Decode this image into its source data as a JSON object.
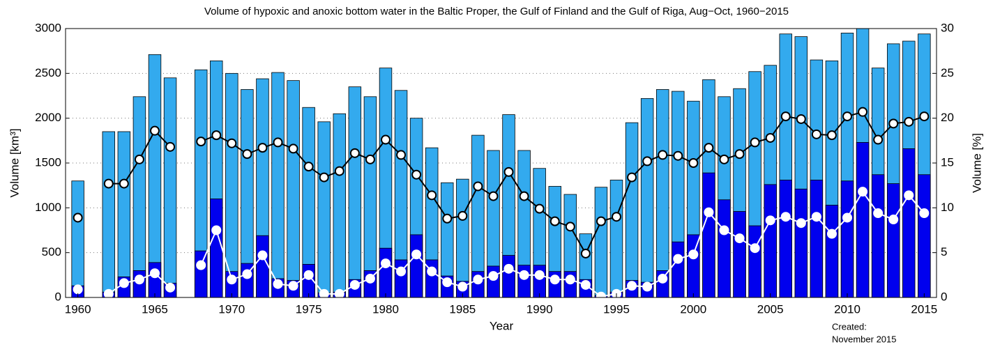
{
  "chart_data": {
    "type": "bar",
    "title": "Volume of hypoxic and anoxic bottom water in the Baltic Proper, the Gulf of Finland and the Gulf of Riga, Aug−Oct, 1960−2015",
    "xlabel": "Year",
    "ylabel": "Volume [km³]",
    "y2label": "Volume [%]",
    "annotation": [
      "Created:",
      "November 2015"
    ],
    "x": [
      1960,
      1961,
      1962,
      1963,
      1964,
      1965,
      1966,
      1967,
      1968,
      1969,
      1970,
      1971,
      1972,
      1973,
      1974,
      1975,
      1976,
      1977,
      1978,
      1979,
      1980,
      1981,
      1982,
      1983,
      1984,
      1985,
      1986,
      1987,
      1988,
      1989,
      1990,
      1991,
      1992,
      1993,
      1994,
      1995,
      1996,
      1997,
      1998,
      1999,
      2000,
      2001,
      2002,
      2003,
      2004,
      2005,
      2006,
      2007,
      2008,
      2009,
      2010,
      2011,
      2012,
      2013,
      2014,
      2015
    ],
    "xlim": [
      1959.2,
      2015.8
    ],
    "xticks": [
      1960,
      1965,
      1970,
      1975,
      1980,
      1985,
      1990,
      1995,
      2000,
      2005,
      2010,
      2015
    ],
    "ylim": [
      0,
      3000
    ],
    "yticks": [
      0,
      500,
      1000,
      1500,
      2000,
      2500,
      3000
    ],
    "y2lim": [
      0,
      30
    ],
    "y2ticks": [
      0,
      5,
      10,
      15,
      20,
      25,
      30
    ],
    "grid": true,
    "series": [
      {
        "kind": "bar",
        "color": "#33aaee",
        "values": [
          1300,
          null,
          1850,
          1850,
          2240,
          2710,
          2450,
          null,
          2540,
          2640,
          2500,
          2320,
          2440,
          2510,
          2420,
          2120,
          1960,
          2050,
          2350,
          2240,
          2560,
          2310,
          2000,
          1670,
          1280,
          1320,
          1810,
          1640,
          2040,
          1640,
          1440,
          1240,
          1150,
          710,
          1230,
          1310,
          1950,
          2220,
          2320,
          2300,
          2190,
          2430,
          2240,
          2330,
          2520,
          2590,
          2940,
          2910,
          2650,
          2640,
          2950,
          3000,
          2560,
          2830,
          2860,
          2940
        ]
      },
      {
        "kind": "bar",
        "color": "#0000ee",
        "values": [
          130,
          null,
          60,
          230,
          300,
          390,
          160,
          null,
          520,
          1100,
          290,
          380,
          690,
          210,
          190,
          370,
          50,
          60,
          200,
          300,
          550,
          420,
          700,
          420,
          240,
          180,
          290,
          350,
          470,
          360,
          360,
          290,
          290,
          200,
          20,
          60,
          190,
          170,
          300,
          620,
          700,
          1390,
          1090,
          960,
          800,
          1260,
          1310,
          1210,
          1310,
          1030,
          1300,
          1730,
          1370,
          1270,
          1660,
          1370
        ]
      },
      {
        "kind": "line",
        "axis": "y2",
        "color": "#000000",
        "marker_fill": "#ffffff",
        "values": [
          8.9,
          null,
          12.7,
          12.7,
          15.4,
          18.6,
          16.8,
          null,
          17.4,
          18.1,
          17.2,
          16.0,
          16.7,
          17.3,
          16.6,
          14.6,
          13.4,
          14.1,
          16.1,
          15.4,
          17.6,
          15.9,
          13.7,
          11.4,
          8.8,
          9.1,
          12.4,
          11.3,
          14.0,
          11.3,
          9.9,
          8.5,
          7.9,
          4.9,
          8.5,
          9.0,
          13.4,
          15.2,
          15.9,
          15.8,
          15.0,
          16.7,
          15.4,
          16.0,
          17.3,
          17.8,
          20.2,
          19.9,
          18.2,
          18.1,
          20.2,
          20.7,
          17.6,
          19.4,
          19.6,
          20.2
        ]
      },
      {
        "kind": "line",
        "axis": "y2",
        "color": "#ffffff",
        "marker_fill": "#ffffff",
        "values": [
          0.9,
          null,
          0.4,
          1.6,
          2.0,
          2.7,
          1.1,
          null,
          3.6,
          7.5,
          2.0,
          2.6,
          4.7,
          1.5,
          1.3,
          2.5,
          0.4,
          0.4,
          1.4,
          2.1,
          3.8,
          2.9,
          4.8,
          2.9,
          1.7,
          1.2,
          2.0,
          2.4,
          3.2,
          2.5,
          2.5,
          2.0,
          2.0,
          1.4,
          0.1,
          0.4,
          1.3,
          1.2,
          2.1,
          4.3,
          4.8,
          9.5,
          7.5,
          6.6,
          5.5,
          8.6,
          9.0,
          8.3,
          9.0,
          7.1,
          8.9,
          11.8,
          9.4,
          8.7,
          11.4,
          9.4
        ]
      }
    ]
  }
}
